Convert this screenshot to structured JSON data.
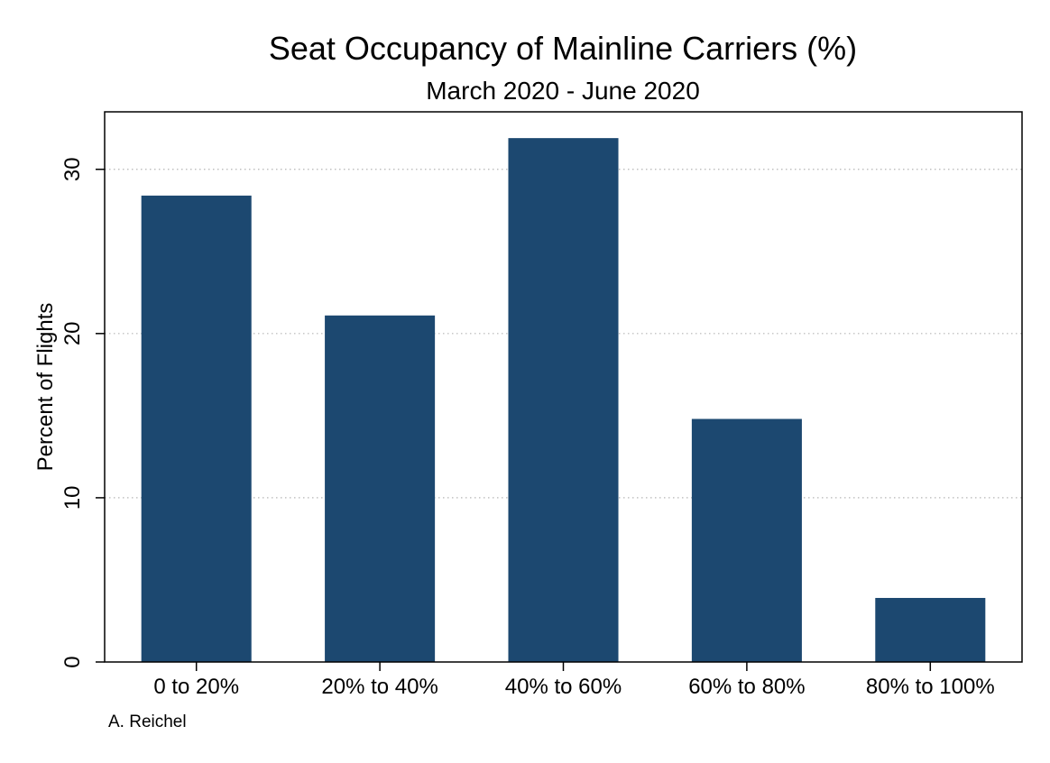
{
  "chart_data": {
    "type": "bar",
    "title": "Seat Occupancy of Mainline Carriers (%)",
    "subtitle": "March 2020 - June 2020",
    "xlabel": "",
    "ylabel": "Percent of Flights",
    "categories": [
      "0 to 20%",
      "20% to 40%",
      "40% to 60%",
      "60% to 80%",
      "80% to 100%"
    ],
    "values": [
      28.4,
      21.1,
      31.9,
      14.8,
      3.9
    ],
    "ylim": [
      0,
      33.5
    ],
    "yticks": [
      0,
      10,
      20,
      30
    ],
    "grid": true,
    "bar_color": "#1c4870",
    "grid_color": "#b5b5b5"
  },
  "note": "A. Reichel"
}
